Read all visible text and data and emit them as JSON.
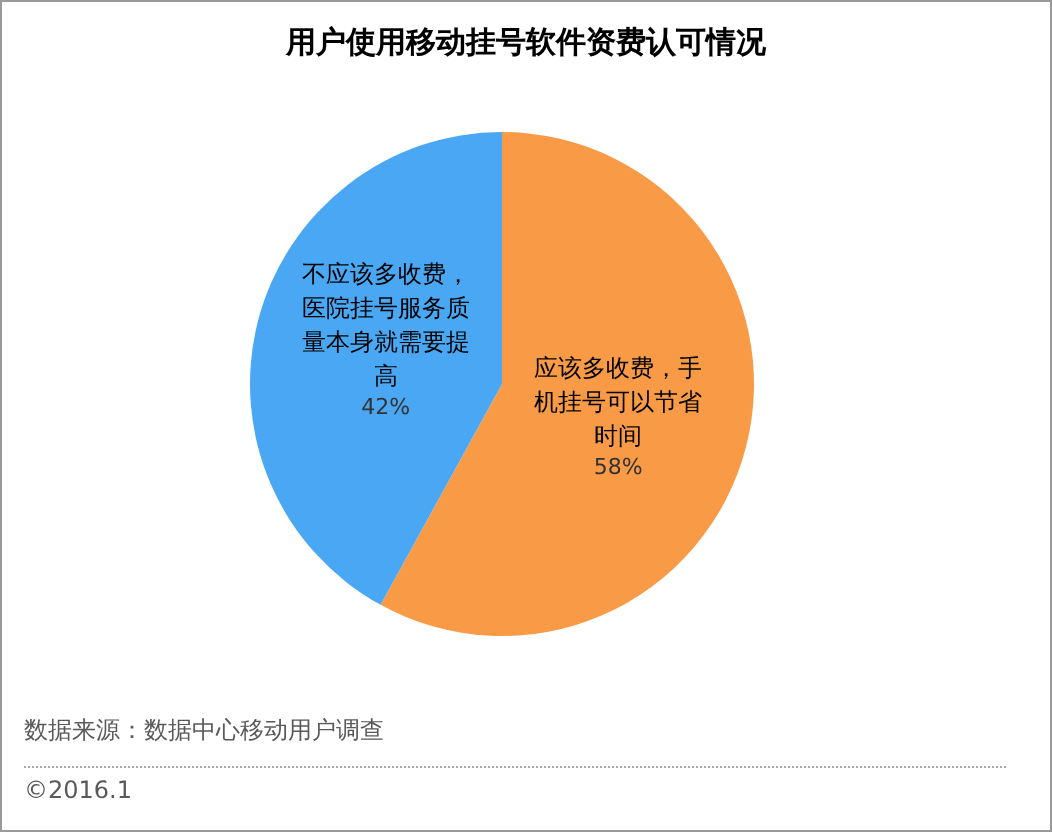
{
  "chart_data": {
    "type": "pie",
    "title": "用户使用移动挂号软件资费认可情况",
    "categories": [
      "应该多收费，手机挂号可以节省时间",
      "不应该多收费，医院挂号服务质量本身就需要提高"
    ],
    "values": [
      58,
      42
    ],
    "colors": [
      "#f99a46",
      "#4aa7f3"
    ],
    "value_labels": [
      "58%",
      "42%"
    ],
    "annotations": [
      "数据来源：数据中心移动用户调查",
      "©2016.1"
    ]
  }
}
